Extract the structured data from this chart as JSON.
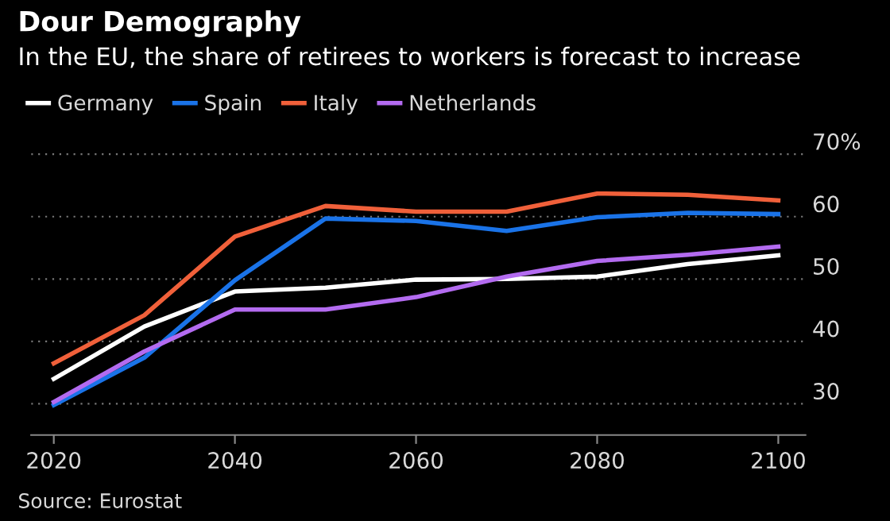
{
  "chart_data": {
    "type": "line",
    "title": "Dour Demography",
    "subtitle": "In the EU, the share of retirees to workers is forecast to increase",
    "x": [
      2020,
      2030,
      2040,
      2050,
      2060,
      2070,
      2080,
      2090,
      2100
    ],
    "series": [
      {
        "name": "Germany",
        "color": "#ffffff",
        "values": [
          34.0,
          42.4,
          48.0,
          48.6,
          49.9,
          50.0,
          50.4,
          52.4,
          53.8
        ]
      },
      {
        "name": "Spain",
        "color": "#1a73e8",
        "values": [
          29.8,
          37.4,
          49.8,
          59.7,
          59.3,
          57.7,
          59.9,
          60.6,
          60.4
        ]
      },
      {
        "name": "Italy",
        "color": "#f0603a",
        "values": [
          36.5,
          44.2,
          56.8,
          61.7,
          60.8,
          60.8,
          63.7,
          63.5,
          62.6
        ]
      },
      {
        "name": "Netherlands",
        "color": "#b36bf0",
        "values": [
          30.3,
          38.4,
          45.1,
          45.1,
          47.1,
          50.4,
          52.9,
          53.9,
          55.2
        ]
      }
    ],
    "xlim": [
      2017.5,
      2103
    ],
    "xticks": [
      2020,
      2040,
      2060,
      2080,
      2100
    ],
    "ylim": [
      25,
      70.5
    ],
    "yticks": [
      30,
      40,
      50,
      60,
      {
        "value": 70,
        "label": "70%"
      }
    ],
    "grid": "y",
    "legend": "top left",
    "line_style": "solid",
    "marker": "none",
    "annotations": [
      "Source: Eurostat"
    ]
  }
}
